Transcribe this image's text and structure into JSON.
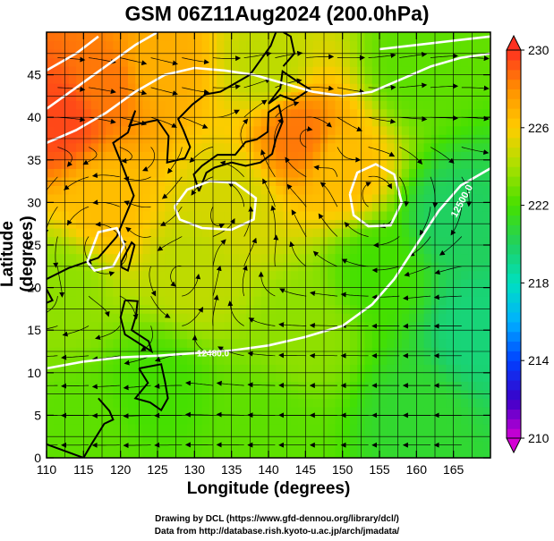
{
  "chart_data": {
    "type": "heatmap",
    "title": "GSM 06Z11Aug2024 (200.0hPa)",
    "xlabel": "Longitude (degrees)",
    "ylabel": "Latitude  (degrees)",
    "xlim": [
      110,
      170
    ],
    "ylim": [
      0,
      50
    ],
    "xticks": [
      110,
      115,
      120,
      125,
      130,
      135,
      140,
      145,
      150,
      155,
      160,
      165
    ],
    "yticks": [
      0,
      5,
      10,
      15,
      20,
      25,
      30,
      35,
      40,
      45
    ],
    "grid": true,
    "colorbar": {
      "min": 210,
      "max": 230,
      "ticks": [
        230,
        226,
        222,
        218,
        214,
        210
      ],
      "colors": [
        "#d400d4",
        "#3a00c8",
        "#0040ff",
        "#00b0ff",
        "#00e0c0",
        "#20d060",
        "#44e000",
        "#a8e000",
        "#ffcc00",
        "#ff9000",
        "#ff3020"
      ]
    },
    "contour_labels": [
      "12480.0",
      "12500.0"
    ],
    "field_samples": [
      {
        "lon": 112,
        "lat": 40,
        "value": 229.5
      },
      {
        "lon": 118,
        "lat": 44,
        "value": 228.5
      },
      {
        "lon": 125,
        "lat": 46,
        "value": 227.0
      },
      {
        "lon": 140,
        "lat": 46,
        "value": 224.5
      },
      {
        "lon": 160,
        "lat": 46,
        "value": 222.5
      },
      {
        "lon": 144,
        "lat": 38,
        "value": 228.5
      },
      {
        "lon": 150,
        "lat": 34,
        "value": 226.5
      },
      {
        "lon": 135,
        "lat": 30,
        "value": 225.0
      },
      {
        "lon": 118,
        "lat": 30,
        "value": 226.5
      },
      {
        "lon": 130,
        "lat": 22,
        "value": 224.5
      },
      {
        "lon": 112,
        "lat": 20,
        "value": 223.5
      },
      {
        "lon": 145,
        "lat": 15,
        "value": 223.5
      },
      {
        "lon": 125,
        "lat": 8,
        "value": 222.0
      },
      {
        "lon": 115,
        "lat": 3,
        "value": 222.5
      },
      {
        "lon": 155,
        "lat": 22,
        "value": 222.0
      },
      {
        "lon": 165,
        "lat": 28,
        "value": 220.0
      },
      {
        "lon": 168,
        "lat": 15,
        "value": 219.5
      },
      {
        "lon": 160,
        "lat": 5,
        "value": 221.0
      },
      {
        "lon": 140,
        "lat": 3,
        "value": 222.5
      }
    ]
  },
  "credits": {
    "drawing": "Drawing by DCL (https://www.gfd-dennou.org/library/dcl/)",
    "data": "Data from http://database.rish.kyoto-u.ac.jp/arch/jmadata/"
  }
}
